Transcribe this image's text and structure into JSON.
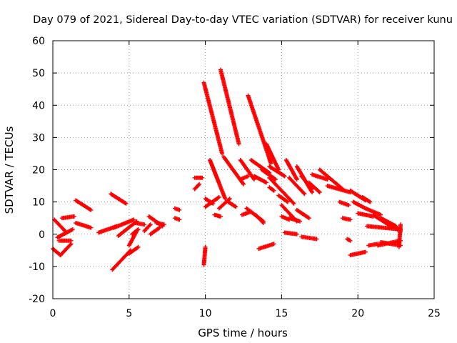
{
  "chart_data": {
    "type": "scatter",
    "title": "Day 079 of 2021, Sidereal Day-to-day VTEC variation (SDTVAR) for receiver kunu",
    "xlabel": "GPS time / hours",
    "ylabel": "SDTVAR / TECUs",
    "xlim": [
      0,
      25
    ],
    "ylim": [
      -20,
      60
    ],
    "x_ticks": [
      0,
      5,
      10,
      15,
      20,
      25
    ],
    "y_ticks": [
      -20,
      -10,
      0,
      10,
      20,
      30,
      40,
      50,
      60
    ],
    "x_tick_labels": [
      "0",
      "5",
      "10",
      "15",
      "20",
      "25"
    ],
    "y_tick_labels": [
      "-20",
      "-10",
      "0",
      "10",
      "20",
      "30",
      "40",
      "50",
      "60"
    ],
    "grid": true,
    "marker": "+",
    "color": "#ff0000",
    "segments": [
      {
        "x": [
          0.0,
          0.5
        ],
        "y": [
          -4.5,
          -6.5
        ]
      },
      {
        "x": [
          0.1,
          0.9
        ],
        "y": [
          4.5,
          0.5
        ]
      },
      {
        "x": [
          0.3,
          1.3
        ],
        "y": [
          -1.0,
          1.5
        ]
      },
      {
        "x": [
          0.5,
          1.2
        ],
        "y": [
          -6.5,
          -3.0
        ]
      },
      {
        "x": [
          0.6,
          1.4
        ],
        "y": [
          5.0,
          5.5
        ]
      },
      {
        "x": [
          0.4,
          1.2
        ],
        "y": [
          -2.0,
          -2.0
        ]
      },
      {
        "x": [
          1.5,
          2.5
        ],
        "y": [
          10.5,
          7.5
        ]
      },
      {
        "x": [
          1.5,
          2.5
        ],
        "y": [
          3.5,
          2.0
        ]
      },
      {
        "x": [
          3.0,
          4.2
        ],
        "y": [
          0.5,
          2.5
        ]
      },
      {
        "x": [
          3.8,
          4.8
        ],
        "y": [
          12.5,
          9.5
        ]
      },
      {
        "x": [
          4.0,
          5.3
        ],
        "y": [
          2.0,
          4.5
        ]
      },
      {
        "x": [
          3.9,
          5.1
        ],
        "y": [
          -11.0,
          -5.0
        ]
      },
      {
        "x": [
          4.3,
          5.5
        ],
        "y": [
          -0.5,
          4.0
        ]
      },
      {
        "x": [
          5.0,
          5.5
        ],
        "y": [
          -3.5,
          1.0
        ]
      },
      {
        "x": [
          5.2,
          5.6
        ],
        "y": [
          0.0,
          1.5
        ]
      },
      {
        "x": [
          5.0,
          5.6
        ],
        "y": [
          -6.0,
          -4.0
        ]
      },
      {
        "x": [
          5.4,
          6.0
        ],
        "y": [
          3.5,
          3.0
        ]
      },
      {
        "x": [
          6.0,
          6.4
        ],
        "y": [
          1.0,
          3.0
        ]
      },
      {
        "x": [
          6.4,
          7.0
        ],
        "y": [
          0.0,
          2.0
        ]
      },
      {
        "x": [
          6.3,
          7.2
        ],
        "y": [
          5.5,
          2.5
        ]
      },
      {
        "x": [
          6.8,
          7.3
        ],
        "y": [
          3.5,
          3.0
        ]
      },
      {
        "x": [
          8.0,
          8.3
        ],
        "y": [
          8.0,
          7.5
        ]
      },
      {
        "x": [
          8.0,
          8.3
        ],
        "y": [
          5.0,
          4.5
        ]
      },
      {
        "x": [
          9.3,
          9.8
        ],
        "y": [
          17.5,
          17.5
        ]
      },
      {
        "x": [
          9.3,
          9.6
        ],
        "y": [
          14.0,
          15.5
        ]
      },
      {
        "x": [
          9.9,
          10.0
        ],
        "y": [
          -9.5,
          -4.0
        ]
      },
      {
        "x": [
          9.9,
          11.1
        ],
        "y": [
          47.0,
          25.0
        ]
      },
      {
        "x": [
          10.3,
          11.3
        ],
        "y": [
          23.0,
          11.0
        ]
      },
      {
        "x": [
          10.0,
          10.9
        ],
        "y": [
          8.5,
          11.5
        ]
      },
      {
        "x": [
          10.9,
          11.6
        ],
        "y": [
          8.0,
          11.0
        ]
      },
      {
        "x": [
          10.0,
          10.5
        ],
        "y": [
          11.0,
          9.5
        ]
      },
      {
        "x": [
          10.6,
          11.0
        ],
        "y": [
          6.0,
          5.5
        ]
      },
      {
        "x": [
          11.0,
          12.2
        ],
        "y": [
          51.0,
          28.0
        ]
      },
      {
        "x": [
          11.2,
          12.5
        ],
        "y": [
          24.0,
          15.5
        ]
      },
      {
        "x": [
          11.5,
          12.0
        ],
        "y": [
          10.0,
          8.5
        ]
      },
      {
        "x": [
          12.3,
          12.8
        ],
        "y": [
          17.0,
          18.0
        ]
      },
      {
        "x": [
          12.3,
          13.2
        ],
        "y": [
          23.0,
          17.0
        ]
      },
      {
        "x": [
          12.4,
          13.0
        ],
        "y": [
          6.0,
          7.0
        ]
      },
      {
        "x": [
          12.7,
          13.8
        ],
        "y": [
          8.0,
          4.0
        ]
      },
      {
        "x": [
          12.8,
          14.3
        ],
        "y": [
          43.0,
          22.0
        ]
      },
      {
        "x": [
          13.0,
          14.2
        ],
        "y": [
          23.0,
          19.0
        ]
      },
      {
        "x": [
          13.7,
          14.6
        ],
        "y": [
          20.0,
          17.0
        ]
      },
      {
        "x": [
          13.2,
          14.0
        ],
        "y": [
          18.0,
          16.0
        ]
      },
      {
        "x": [
          14.0,
          14.8
        ],
        "y": [
          28.0,
          20.0
        ]
      },
      {
        "x": [
          14.2,
          15.2
        ],
        "y": [
          21.0,
          18.0
        ]
      },
      {
        "x": [
          13.3,
          13.8
        ],
        "y": [
          6.0,
          3.5
        ]
      },
      {
        "x": [
          14.2,
          14.5
        ],
        "y": [
          14.5,
          13.5
        ]
      },
      {
        "x": [
          14.2,
          15.8
        ],
        "y": [
          17.5,
          9.5
        ]
      },
      {
        "x": [
          13.5,
          14.5
        ],
        "y": [
          -4.5,
          -3.0
        ]
      },
      {
        "x": [
          14.8,
          15.4
        ],
        "y": [
          12.0,
          10.0
        ]
      },
      {
        "x": [
          15.0,
          16.0
        ],
        "y": [
          9.0,
          4.0
        ]
      },
      {
        "x": [
          15.3,
          16.0
        ],
        "y": [
          23.0,
          17.0
        ]
      },
      {
        "x": [
          15.5,
          16.5
        ],
        "y": [
          17.5,
          12.5
        ]
      },
      {
        "x": [
          15.0,
          15.5
        ],
        "y": [
          5.5,
          4.5
        ]
      },
      {
        "x": [
          15.5,
          16.2
        ],
        "y": [
          5.0,
          4.0
        ]
      },
      {
        "x": [
          15.2,
          16.0
        ],
        "y": [
          0.5,
          0.0
        ]
      },
      {
        "x": [
          16.0,
          16.8
        ],
        "y": [
          7.5,
          5.0
        ]
      },
      {
        "x": [
          16.0,
          17.0
        ],
        "y": [
          21.0,
          13.0
        ]
      },
      {
        "x": [
          16.3,
          17.0
        ],
        "y": [
          18.0,
          14.0
        ]
      },
      {
        "x": [
          16.3,
          17.3
        ],
        "y": [
          -0.8,
          -1.5
        ]
      },
      {
        "x": [
          17.0,
          18.0
        ],
        "y": [
          18.5,
          17.0
        ]
      },
      {
        "x": [
          16.8,
          17.5
        ],
        "y": [
          16.0,
          13.0
        ]
      },
      {
        "x": [
          17.5,
          19.0
        ],
        "y": [
          20.0,
          14.0
        ]
      },
      {
        "x": [
          18.0,
          19.5
        ],
        "y": [
          15.0,
          13.0
        ]
      },
      {
        "x": [
          18.8,
          19.4
        ],
        "y": [
          10.0,
          9.0
        ]
      },
      {
        "x": [
          19.5,
          20.0
        ],
        "y": [
          13.5,
          12.0
        ]
      },
      {
        "x": [
          19.0,
          19.5
        ],
        "y": [
          5.0,
          4.5
        ]
      },
      {
        "x": [
          19.3,
          19.5
        ],
        "y": [
          -1.5,
          -2.0
        ]
      },
      {
        "x": [
          19.5,
          20.5
        ],
        "y": [
          -6.5,
          -5.5
        ]
      },
      {
        "x": [
          19.7,
          20.5
        ],
        "y": [
          10.0,
          8.0
        ]
      },
      {
        "x": [
          20.0,
          20.5
        ],
        "y": [
          12.0,
          10.5
        ]
      },
      {
        "x": [
          20.3,
          20.8
        ],
        "y": [
          11.5,
          10.0
        ]
      },
      {
        "x": [
          20.0,
          21.0
        ],
        "y": [
          6.5,
          5.5
        ]
      },
      {
        "x": [
          20.5,
          21.5
        ],
        "y": [
          8.0,
          6.0
        ]
      },
      {
        "x": [
          21.0,
          22.0
        ],
        "y": [
          6.0,
          3.0
        ]
      },
      {
        "x": [
          21.5,
          22.5
        ],
        "y": [
          5.0,
          2.5
        ]
      },
      {
        "x": [
          22.0,
          22.8
        ],
        "y": [
          3.0,
          1.0
        ]
      },
      {
        "x": [
          20.6,
          22.8
        ],
        "y": [
          2.5,
          1.5
        ]
      },
      {
        "x": [
          20.7,
          21.3
        ],
        "y": [
          -3.5,
          -3.0
        ]
      },
      {
        "x": [
          21.3,
          22.8
        ],
        "y": [
          -3.5,
          -2.0
        ]
      },
      {
        "x": [
          21.5,
          22.8
        ],
        "y": [
          -2.5,
          -3.5
        ]
      },
      {
        "x": [
          22.7,
          22.8
        ],
        "y": [
          -4.0,
          3.0
        ]
      }
    ]
  }
}
